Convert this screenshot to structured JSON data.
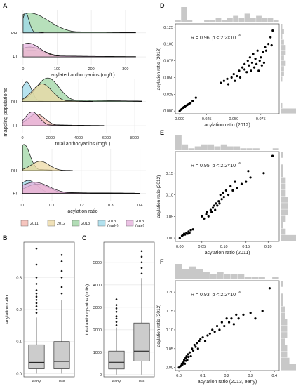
{
  "panel_labels": {
    "A": "A",
    "B": "B",
    "C": "C",
    "D": "D",
    "E": "E",
    "F": "F"
  },
  "colors": {
    "2011": "#f4b6ae",
    "2012": "#ecd9a6",
    "2013": "#9fd5a4",
    "2013 (early)": "#9fd9ea",
    "2013 (late)": "#e6b3dd",
    "grid": "#ebebeb",
    "box": "#cccccc",
    "hist": "#c8c8c8",
    "point": "#000000",
    "line": "#111111"
  },
  "legend": {
    "items": [
      "2011",
      "2012",
      "2013",
      "2013\n(early)",
      "2013\n(late)"
    ]
  },
  "mapping_ylabel": "mapping populations",
  "chart_data": [
    {
      "id": "A1",
      "type": "area",
      "xlabel": "acylated anthocyanins (mg/L)",
      "xticks": [
        "0",
        "100",
        "200",
        "300"
      ],
      "xlim": [
        -10,
        360
      ],
      "yticks": [
        "RH",
        "HI"
      ],
      "series": [
        {
          "name": "2013",
          "row": "RH",
          "peak": 20,
          "width": 55,
          "height": 1.0,
          "tail": 330
        },
        {
          "name": "2013 (early)",
          "row": "RH",
          "peak": 8,
          "width": 10,
          "height": 1.0,
          "tail": 60
        },
        {
          "name": "2011",
          "row": "HI",
          "peak": 25,
          "width": 40,
          "height": 0.35,
          "tail": 330
        },
        {
          "name": "2012",
          "row": "HI",
          "peak": 20,
          "width": 40,
          "height": 0.5,
          "tail": 180
        },
        {
          "name": "2013 (late)",
          "row": "HI",
          "peak": 15,
          "width": 35,
          "height": 0.7,
          "tail": 330
        }
      ]
    },
    {
      "id": "A2",
      "type": "area",
      "xlabel": "total anthocyanins (mg/L)",
      "xticks": [
        "0",
        "2000",
        "4000",
        "6000",
        "8000"
      ],
      "xlim": [
        -200,
        8800
      ],
      "yticks": [
        "RH",
        "HI"
      ],
      "series": [
        {
          "name": "2013 (early)",
          "row": "RH",
          "peak": 300,
          "width": 350,
          "height": 1.0,
          "tail": 1500
        },
        {
          "name": "2013",
          "row": "RH",
          "peak": 1800,
          "width": 800,
          "height": 1.2,
          "tail": 8500
        },
        {
          "name": "2012",
          "row": "RH",
          "peak": 1400,
          "width": 700,
          "height": 0.9,
          "tail": 5000
        },
        {
          "name": "2011",
          "row": "HI",
          "peak": 1000,
          "width": 600,
          "height": 0.6,
          "tail": 5800
        },
        {
          "name": "2013 (late)",
          "row": "HI",
          "peak": 700,
          "width": 500,
          "height": 0.7,
          "tail": 3500
        }
      ]
    },
    {
      "id": "A3",
      "type": "area",
      "xlabel": "acylation ratio",
      "xticks": [
        "0.0",
        "0.1",
        "0.2",
        "0.3",
        "0.4"
      ],
      "xlim": [
        -0.01,
        0.42
      ],
      "yticks": [
        "RH",
        "HI"
      ],
      "series": [
        {
          "name": "2013",
          "row": "RH",
          "peak": 0.005,
          "width": 0.02,
          "height": 1.4,
          "tail": 0.1
        },
        {
          "name": "2012",
          "row": "RH",
          "peak": 0.06,
          "width": 0.03,
          "height": 0.5,
          "tail": 0.17
        },
        {
          "name": "2013 (early)",
          "row": "HI",
          "peak": 0.02,
          "width": 0.03,
          "height": 0.7,
          "tail": 0.38
        },
        {
          "name": "2011",
          "row": "HI",
          "peak": 0.05,
          "width": 0.04,
          "height": 0.5,
          "tail": 0.4
        },
        {
          "name": "2013 (late)",
          "row": "HI",
          "peak": 0.04,
          "width": 0.05,
          "height": 0.6,
          "tail": 0.4
        }
      ]
    },
    {
      "id": "B",
      "type": "box",
      "ylabel": "acylation ratio",
      "categories": [
        "early",
        "late"
      ],
      "yticks": [
        "0.0",
        "0.1",
        "0.2",
        "0.3"
      ],
      "ylim": [
        -0.01,
        0.41
      ],
      "boxes": [
        {
          "q1": 0.015,
          "median": 0.035,
          "q3": 0.09,
          "whisker_low": 0.0,
          "whisker_high": 0.175,
          "outliers": [
            0.19,
            0.2,
            0.21,
            0.22,
            0.23,
            0.24,
            0.25,
            0.26,
            0.28,
            0.3,
            0.34,
            0.39
          ]
        },
        {
          "q1": 0.015,
          "median": 0.038,
          "q3": 0.1,
          "whisker_low": 0.0,
          "whisker_high": 0.23,
          "outliers": [
            0.25,
            0.27,
            0.3,
            0.32,
            0.35,
            0.37
          ]
        }
      ]
    },
    {
      "id": "C",
      "type": "box",
      "ylabel": "total anthocyanins (units)",
      "categories": [
        "early",
        "late"
      ],
      "yticks": [
        "0",
        "1000",
        "2000",
        "3000",
        "4000",
        "5000"
      ],
      "ylim": [
        -100,
        5900
      ],
      "boxes": [
        {
          "q1": 250,
          "median": 550,
          "q3": 1050,
          "whisker_low": 0,
          "whisker_high": 2100,
          "outliers": [
            2200,
            2350,
            2500,
            2600,
            2800,
            2950,
            3100,
            3350
          ]
        },
        {
          "q1": 600,
          "median": 1050,
          "q3": 2300,
          "whisker_low": 0,
          "whisker_high": 4300,
          "outliers": [
            4500,
            4750,
            5000,
            5250,
            5500
          ]
        }
      ]
    },
    {
      "id": "D",
      "type": "scatter",
      "annotation": "R = 0.96, p < 2.2×10",
      "annotation_exp": "-6",
      "xlabel": "acylation ratio (2012)",
      "ylabel": "acylation ratio (2013)",
      "xticks": [
        "0.000",
        "0.025",
        "0.050",
        "0.075"
      ],
      "yticks": [
        "0.000",
        "0.025",
        "0.050",
        "0.075",
        "0.100",
        "0.125"
      ],
      "xlim": [
        -0.004,
        0.092
      ],
      "ylim": [
        -0.004,
        0.13
      ],
      "points": [
        [
          0,
          0
        ],
        [
          0.001,
          0.002
        ],
        [
          0.002,
          0.003
        ],
        [
          0.003,
          0.004
        ],
        [
          0.003,
          0.005
        ],
        [
          0.004,
          0.006
        ],
        [
          0.005,
          0.007
        ],
        [
          0.005,
          0.006
        ],
        [
          0.006,
          0.008
        ],
        [
          0.007,
          0.009
        ],
        [
          0.008,
          0.01
        ],
        [
          0.009,
          0.011
        ],
        [
          0.01,
          0.012
        ],
        [
          0.012,
          0.015
        ],
        [
          0.015,
          0.02
        ],
        [
          0.038,
          0.042
        ],
        [
          0.041,
          0.045
        ],
        [
          0.044,
          0.048
        ],
        [
          0.045,
          0.04
        ],
        [
          0.048,
          0.05
        ],
        [
          0.05,
          0.055
        ],
        [
          0.051,
          0.045
        ],
        [
          0.053,
          0.052
        ],
        [
          0.055,
          0.06
        ],
        [
          0.056,
          0.05
        ],
        [
          0.058,
          0.065
        ],
        [
          0.06,
          0.062
        ],
        [
          0.06,
          0.07
        ],
        [
          0.062,
          0.058
        ],
        [
          0.063,
          0.075
        ],
        [
          0.064,
          0.068
        ],
        [
          0.065,
          0.08
        ],
        [
          0.066,
          0.06
        ],
        [
          0.067,
          0.072
        ],
        [
          0.068,
          0.085
        ],
        [
          0.069,
          0.065
        ],
        [
          0.07,
          0.078
        ],
        [
          0.071,
          0.07
        ],
        [
          0.072,
          0.09
        ],
        [
          0.073,
          0.06
        ],
        [
          0.074,
          0.075
        ],
        [
          0.075,
          0.08
        ],
        [
          0.076,
          0.068
        ],
        [
          0.077,
          0.088
        ],
        [
          0.078,
          0.072
        ],
        [
          0.079,
          0.095
        ],
        [
          0.08,
          0.09
        ],
        [
          0.082,
          0.1
        ],
        [
          0.084,
          0.11
        ],
        [
          0.086,
          0.12
        ],
        [
          0.085,
          0.098
        ]
      ],
      "xhist": [
        1,
        7,
        1,
        0,
        0,
        1,
        1,
        2,
        1,
        2,
        3,
        2,
        4,
        2,
        3,
        2,
        2,
        1
      ],
      "yhist": [
        9,
        1,
        0,
        0,
        0,
        0,
        1,
        2,
        2,
        3,
        2,
        3,
        3,
        2,
        1,
        2,
        1
      ]
    },
    {
      "id": "E",
      "type": "scatter",
      "annotation": "R = 0.95, p < 2.2×10",
      "annotation_exp": "-6",
      "xlabel": "acylation ratio (2011)",
      "ylabel": "acylation ratio (2012)",
      "xticks": [
        "0.00",
        "0.05",
        "0.10",
        "0.15",
        "0.20"
      ],
      "yticks": [
        "0.00",
        "0.05",
        "0.10",
        "0.15"
      ],
      "xlim": [
        -0.01,
        0.225
      ],
      "ylim": [
        -0.008,
        0.2
      ],
      "points": [
        [
          0.0,
          0.0
        ],
        [
          0.005,
          0.005
        ],
        [
          0.008,
          0.007
        ],
        [
          0.01,
          0.01
        ],
        [
          0.012,
          0.008
        ],
        [
          0.015,
          0.012
        ],
        [
          0.018,
          0.01
        ],
        [
          0.02,
          0.015
        ],
        [
          0.022,
          0.012
        ],
        [
          0.025,
          0.018
        ],
        [
          0.03,
          0.02
        ],
        [
          0.05,
          0.05
        ],
        [
          0.055,
          0.045
        ],
        [
          0.06,
          0.055
        ],
        [
          0.062,
          0.06
        ],
        [
          0.065,
          0.05
        ],
        [
          0.07,
          0.065
        ],
        [
          0.072,
          0.06
        ],
        [
          0.075,
          0.07
        ],
        [
          0.078,
          0.075
        ],
        [
          0.08,
          0.065
        ],
        [
          0.082,
          0.08
        ],
        [
          0.085,
          0.075
        ],
        [
          0.088,
          0.085
        ],
        [
          0.09,
          0.08
        ],
        [
          0.092,
          0.1
        ],
        [
          0.095,
          0.09
        ],
        [
          0.098,
          0.105
        ],
        [
          0.1,
          0.095
        ],
        [
          0.105,
          0.11
        ],
        [
          0.11,
          0.1
        ],
        [
          0.115,
          0.12
        ],
        [
          0.12,
          0.11
        ],
        [
          0.125,
          0.13
        ],
        [
          0.13,
          0.115
        ],
        [
          0.14,
          0.125
        ],
        [
          0.15,
          0.13
        ],
        [
          0.155,
          0.155
        ],
        [
          0.16,
          0.14
        ],
        [
          0.19,
          0.15
        ],
        [
          0.21,
          0.19
        ]
      ],
      "xhist": [
        8,
        3,
        1,
        2,
        3,
        3,
        2,
        3,
        2,
        2,
        1,
        1,
        1,
        0,
        0,
        1
      ],
      "yhist": [
        6,
        2,
        1,
        2,
        3,
        3,
        3,
        2,
        2,
        2,
        1,
        1,
        0,
        1
      ]
    },
    {
      "id": "F",
      "type": "scatter",
      "annotation": "R = 0.93, p < 2.2×10",
      "annotation_exp": "-6",
      "xlabel": "acylation ratio (2013, early)",
      "ylabel": "acylation ratio (2012)",
      "xticks": [
        "0.0",
        "0.1",
        "0.2",
        "0.3",
        "0.4"
      ],
      "yticks": [
        "0.00",
        "0.05",
        "0.10",
        "0.15",
        "0.20"
      ],
      "xlim": [
        -0.015,
        0.42
      ],
      "ylim": [
        -0.008,
        0.23
      ],
      "points": [
        [
          0.0,
          0.0
        ],
        [
          0.005,
          0.003
        ],
        [
          0.01,
          0.005
        ],
        [
          0.012,
          0.01
        ],
        [
          0.015,
          0.008
        ],
        [
          0.018,
          0.012
        ],
        [
          0.02,
          0.015
        ],
        [
          0.022,
          0.02
        ],
        [
          0.025,
          0.01
        ],
        [
          0.028,
          0.025
        ],
        [
          0.03,
          0.018
        ],
        [
          0.032,
          0.03
        ],
        [
          0.035,
          0.02
        ],
        [
          0.038,
          0.035
        ],
        [
          0.04,
          0.028
        ],
        [
          0.045,
          0.04
        ],
        [
          0.05,
          0.03
        ],
        [
          0.055,
          0.05
        ],
        [
          0.06,
          0.045
        ],
        [
          0.065,
          0.06
        ],
        [
          0.07,
          0.055
        ],
        [
          0.075,
          0.065
        ],
        [
          0.08,
          0.05
        ],
        [
          0.085,
          0.07
        ],
        [
          0.09,
          0.075
        ],
        [
          0.1,
          0.08
        ],
        [
          0.11,
          0.07
        ],
        [
          0.12,
          0.085
        ],
        [
          0.13,
          0.09
        ],
        [
          0.14,
          0.1
        ],
        [
          0.15,
          0.095
        ],
        [
          0.16,
          0.11
        ],
        [
          0.17,
          0.1
        ],
        [
          0.18,
          0.12
        ],
        [
          0.19,
          0.11
        ],
        [
          0.2,
          0.13
        ],
        [
          0.21,
          0.12
        ],
        [
          0.22,
          0.13
        ],
        [
          0.23,
          0.115
        ],
        [
          0.24,
          0.14
        ],
        [
          0.25,
          0.13
        ],
        [
          0.27,
          0.14
        ],
        [
          0.3,
          0.145
        ],
        [
          0.32,
          0.13
        ],
        [
          0.35,
          0.15
        ],
        [
          0.38,
          0.21
        ]
      ],
      "xhist": [
        6,
        4,
        5,
        4,
        3,
        2,
        3,
        2,
        2,
        2,
        1,
        1,
        1,
        0,
        1
      ],
      "yhist": [
        7,
        4,
        3,
        3,
        2,
        3,
        3,
        3,
        2,
        2,
        1,
        1,
        0,
        1
      ]
    }
  ]
}
